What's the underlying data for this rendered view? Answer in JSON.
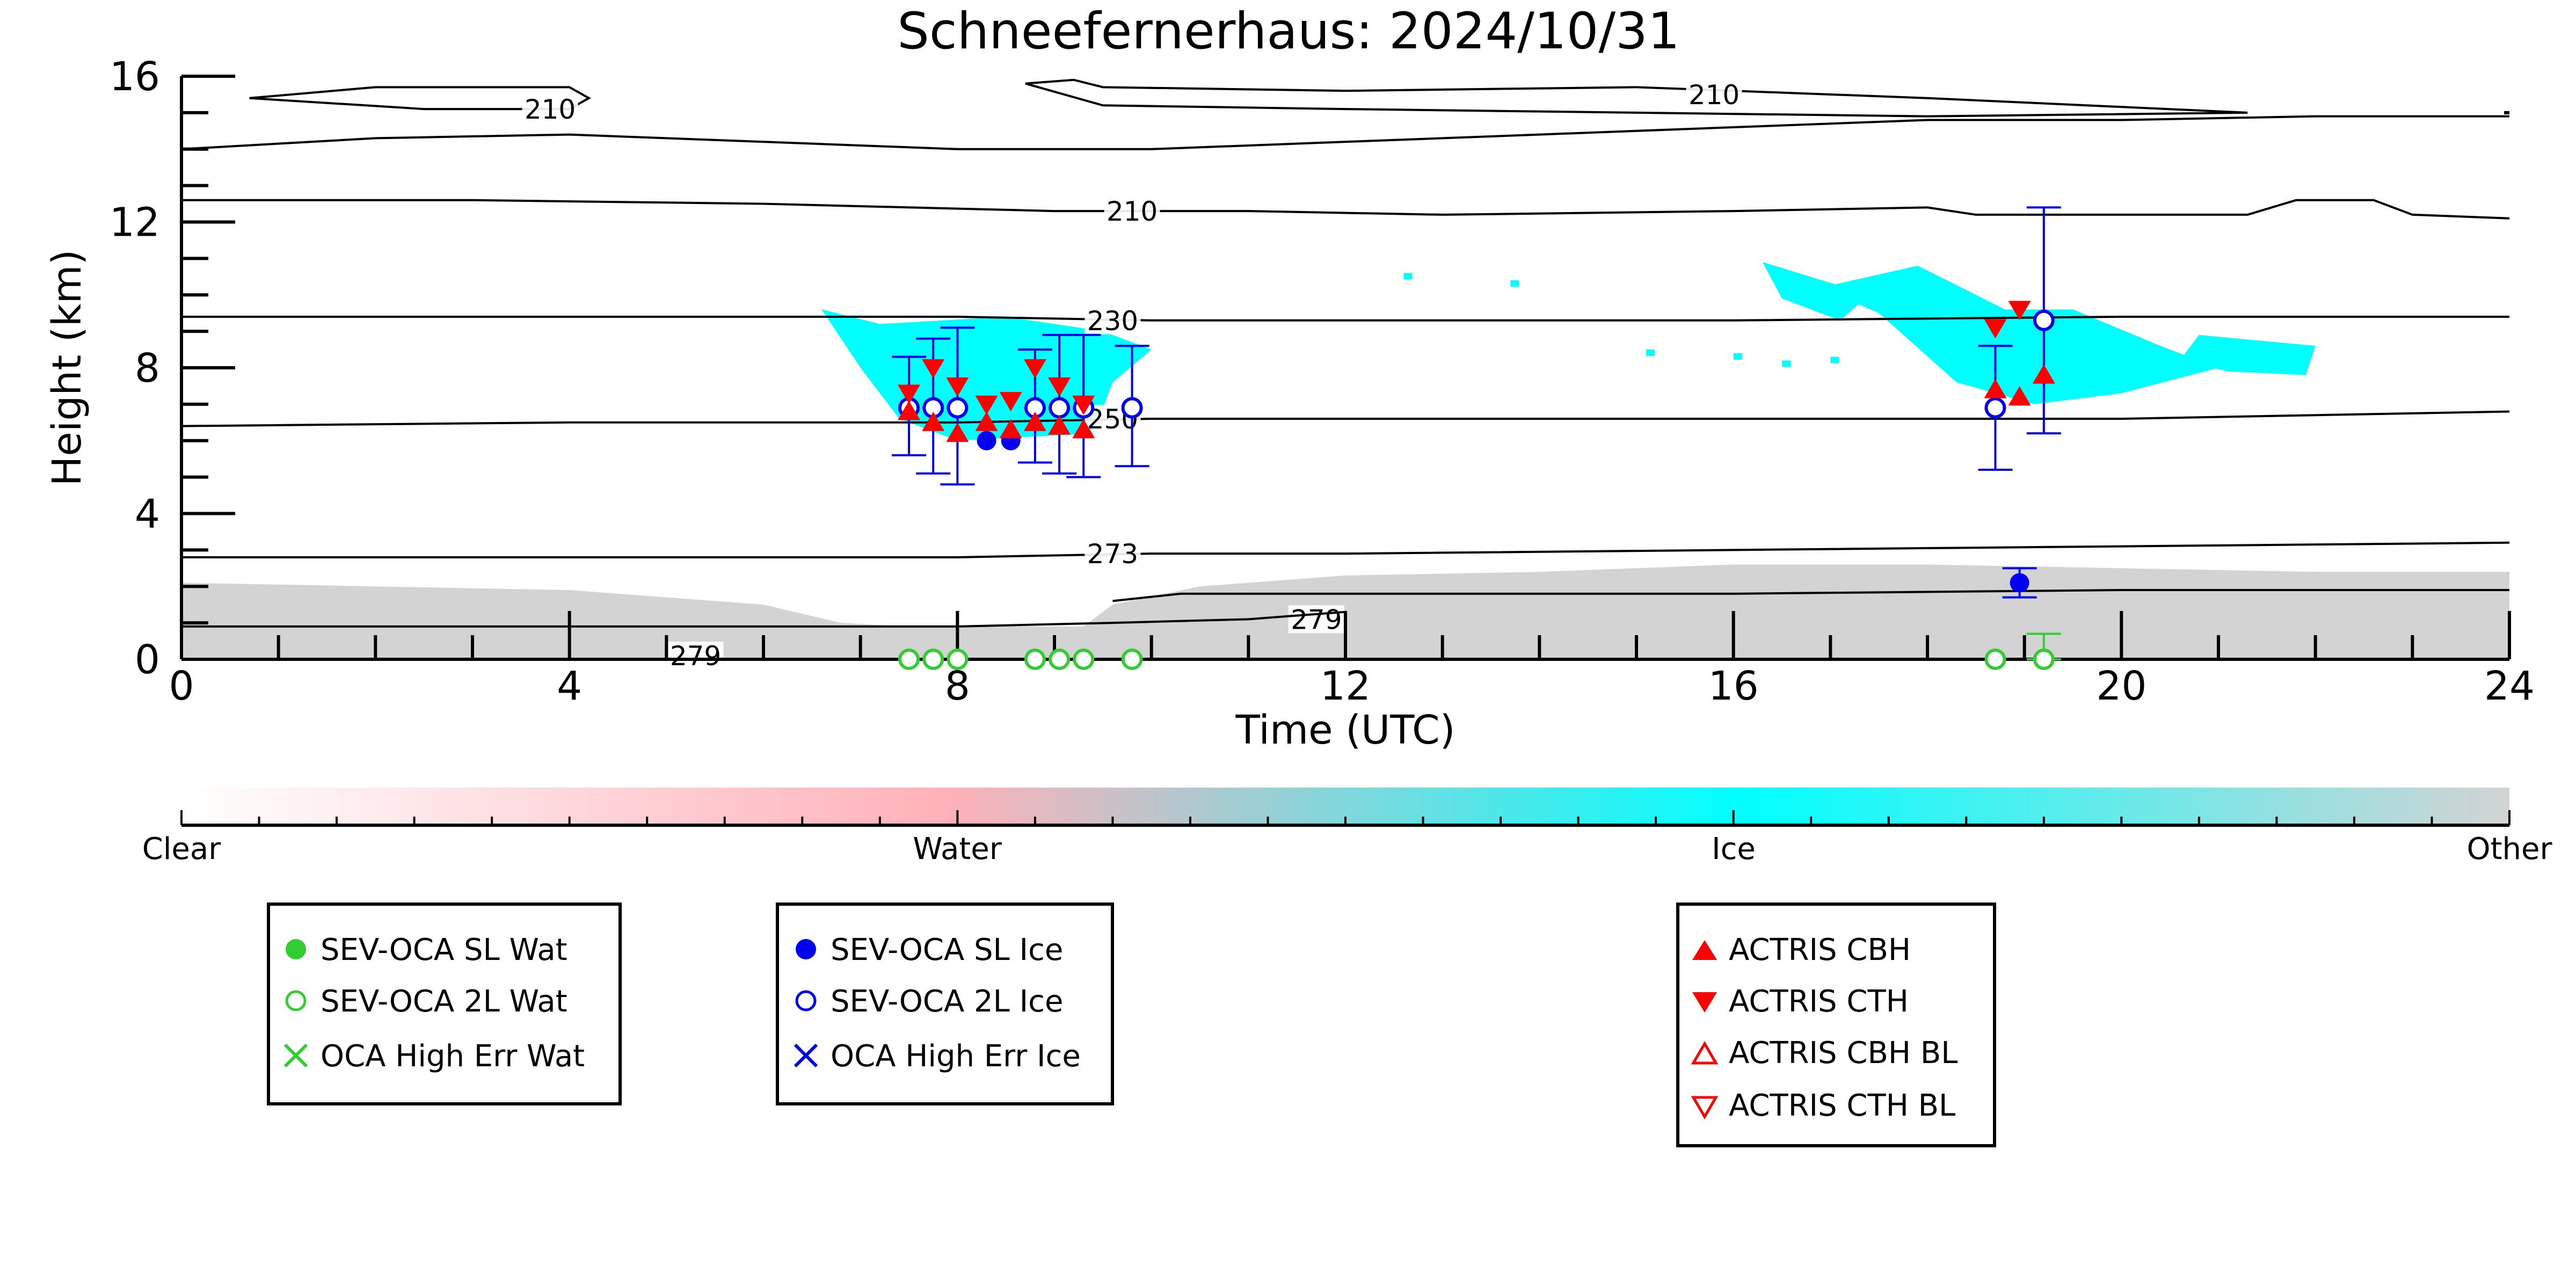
{
  "chart_data": {
    "type": "scatter",
    "title": "Schneefernerhaus: 2024/10/31",
    "xlabel": "Time (UTC)",
    "ylabel": "Height (km)",
    "xlim": [
      0,
      24
    ],
    "ylim": [
      0,
      16
    ],
    "x_ticks": [
      "0",
      "4",
      "8",
      "12",
      "16",
      "20",
      "24"
    ],
    "y_ticks": [
      "0",
      "4",
      "8",
      "12",
      "16"
    ],
    "background_field": "cloud phase mask (Water / Ice / Other)",
    "contours": [
      {
        "label": "210",
        "points": [
          [
            0.7,
            15.4
          ],
          [
            2,
            15.7
          ],
          [
            4,
            15.7
          ],
          [
            4.2,
            15.4
          ],
          [
            4,
            15.1
          ],
          [
            2.5,
            15.1
          ],
          [
            0.7,
            15.4
          ]
        ],
        "label_at": [
          3.8,
          15.1
        ]
      },
      {
        "label": "210",
        "points": [
          [
            0,
            14.0
          ],
          [
            2,
            14.3
          ],
          [
            4,
            14.4
          ],
          [
            6,
            14.2
          ],
          [
            8,
            14.0
          ],
          [
            10,
            14.0
          ],
          [
            12,
            14.2
          ],
          [
            14,
            14.4
          ],
          [
            16,
            14.6
          ],
          [
            18,
            14.8
          ],
          [
            20,
            14.8
          ],
          [
            22,
            14.9
          ],
          [
            24,
            14.9
          ]
        ],
        "label_at": null
      },
      {
        "label": "210",
        "points": [
          [
            8.7,
            15.8
          ],
          [
            9.2,
            15.9
          ],
          [
            9.5,
            15.7
          ],
          [
            12,
            15.6
          ],
          [
            15,
            15.7
          ],
          [
            18,
            15.4
          ],
          [
            21.3,
            15.0
          ],
          [
            18,
            14.9
          ],
          [
            15,
            15.0
          ],
          [
            12,
            15.1
          ],
          [
            9.5,
            15.2
          ],
          [
            8.7,
            15.8
          ]
        ],
        "label_at": [
          15.8,
          15.5
        ]
      },
      {
        "label": "210",
        "points": [
          [
            0,
            12.6
          ],
          [
            3,
            12.6
          ],
          [
            6,
            12.5
          ],
          [
            9,
            12.3
          ],
          [
            11,
            12.3
          ],
          [
            13,
            12.2
          ],
          [
            16,
            12.3
          ],
          [
            18,
            12.4
          ],
          [
            18.5,
            12.2
          ],
          [
            20,
            12.2
          ],
          [
            21.3,
            12.2
          ],
          [
            21.8,
            12.6
          ],
          [
            22.6,
            12.6
          ],
          [
            23,
            12.2
          ],
          [
            24,
            12.1
          ]
        ],
        "label_at": [
          9.8,
          12.3
        ]
      },
      {
        "label": "230",
        "points": [
          [
            0,
            9.4
          ],
          [
            4,
            9.4
          ],
          [
            8,
            9.4
          ],
          [
            10,
            9.3
          ],
          [
            12,
            9.3
          ],
          [
            16,
            9.3
          ],
          [
            20,
            9.4
          ],
          [
            24,
            9.4
          ]
        ],
        "label_at": [
          9.6,
          9.3
        ]
      },
      {
        "label": "250",
        "points": [
          [
            0,
            6.4
          ],
          [
            4,
            6.5
          ],
          [
            8,
            6.5
          ],
          [
            10,
            6.6
          ],
          [
            12,
            6.6
          ],
          [
            16,
            6.6
          ],
          [
            20,
            6.6
          ],
          [
            22,
            6.7
          ],
          [
            24,
            6.8
          ]
        ],
        "label_at": [
          9.6,
          6.6
        ]
      },
      {
        "label": "273",
        "points": [
          [
            0,
            2.8
          ],
          [
            4,
            2.8
          ],
          [
            8,
            2.8
          ],
          [
            10,
            2.9
          ],
          [
            12,
            2.9
          ],
          [
            16,
            3.0
          ],
          [
            20,
            3.1
          ],
          [
            24,
            3.2
          ]
        ],
        "label_at": [
          9.6,
          2.9
        ]
      },
      {
        "label": "279",
        "points": [
          [
            9.6,
            1.6
          ],
          [
            10.3,
            1.8
          ],
          [
            12,
            1.8
          ],
          [
            16,
            1.8
          ],
          [
            20,
            1.9
          ],
          [
            24,
            1.9
          ]
        ],
        "label_at": [
          11.7,
          1.1
        ]
      },
      {
        "label": "279",
        "points": [
          [
            0,
            0.9
          ],
          [
            4,
            0.9
          ],
          [
            8,
            0.9
          ],
          [
            9.6,
            1.0
          ],
          [
            11,
            1.1
          ],
          [
            12,
            1.3
          ]
        ],
        "label_at": null
      },
      {
        "label": "279",
        "points": [],
        "label_at": [
          5.3,
          0.1
        ]
      }
    ],
    "series": [
      {
        "name": "SEV-OCA SL Wat",
        "color": "#33cc33",
        "marker": "filled-circle",
        "points": []
      },
      {
        "name": "SEV-OCA 2L Wat",
        "color": "#33cc33",
        "marker": "open-circle",
        "points": [
          [
            7.5,
            0.0
          ],
          [
            7.75,
            0.0
          ],
          [
            8.0,
            0.0
          ],
          [
            8.8,
            0.0
          ],
          [
            9.05,
            0.0
          ],
          [
            9.3,
            0.0
          ],
          [
            9.8,
            0.0
          ],
          [
            18.7,
            0.0
          ],
          [
            19.2,
            0.0
          ]
        ],
        "errors": [
          [
            19.2,
            0.0,
            0.7
          ]
        ]
      },
      {
        "name": "OCA High Err Wat",
        "color": "#33cc33",
        "marker": "x",
        "points": []
      },
      {
        "name": "SEV-OCA SL Ice",
        "color": "#0000ee",
        "marker": "filled-circle",
        "points": [
          [
            8.3,
            6.0
          ],
          [
            8.55,
            6.0
          ],
          [
            18.95,
            2.1
          ]
        ],
        "errors": [
          [
            18.95,
            1.7,
            2.5
          ]
        ]
      },
      {
        "name": "SEV-OCA 2L Ice",
        "color": "#0000ee",
        "marker": "open-circle",
        "points": [
          [
            7.5,
            6.9
          ],
          [
            7.75,
            6.9
          ],
          [
            8.0,
            6.9
          ],
          [
            8.8,
            6.9
          ],
          [
            9.05,
            6.9
          ],
          [
            9.3,
            6.9
          ],
          [
            9.8,
            6.9
          ],
          [
            18.7,
            6.9
          ],
          [
            19.2,
            9.3
          ]
        ],
        "errors": [
          [
            7.5,
            5.6,
            8.3
          ],
          [
            7.75,
            5.1,
            8.8
          ],
          [
            8.0,
            4.8,
            9.1
          ],
          [
            8.8,
            5.4,
            8.5
          ],
          [
            9.05,
            5.1,
            8.9
          ],
          [
            9.3,
            5.0,
            8.9
          ],
          [
            9.8,
            5.3,
            8.6
          ],
          [
            18.7,
            5.2,
            8.6
          ],
          [
            19.2,
            6.2,
            12.4
          ]
        ]
      },
      {
        "name": "OCA High Err Ice",
        "color": "#0000ee",
        "marker": "x",
        "points": []
      },
      {
        "name": "ACTRIS CBH",
        "color": "#ff0000",
        "marker": "triangle-up",
        "points": [
          [
            7.5,
            6.8
          ],
          [
            7.75,
            6.5
          ],
          [
            8.0,
            6.2
          ],
          [
            8.3,
            6.5
          ],
          [
            8.55,
            6.3
          ],
          [
            8.8,
            6.5
          ],
          [
            9.05,
            6.4
          ],
          [
            9.3,
            6.3
          ],
          [
            18.7,
            7.4
          ],
          [
            18.95,
            7.2
          ],
          [
            19.2,
            7.8
          ]
        ]
      },
      {
        "name": "ACTRIS CTH",
        "color": "#ff0000",
        "marker": "triangle-down",
        "points": [
          [
            7.5,
            7.3
          ],
          [
            7.75,
            8.0
          ],
          [
            8.0,
            7.5
          ],
          [
            8.3,
            7.0
          ],
          [
            8.55,
            7.1
          ],
          [
            8.8,
            8.0
          ],
          [
            9.05,
            7.5
          ],
          [
            9.3,
            7.0
          ],
          [
            18.7,
            9.1
          ],
          [
            18.95,
            9.6
          ]
        ]
      },
      {
        "name": "ACTRIS CBH BL",
        "color": "#ff0000",
        "marker": "open-triangle-up",
        "points": []
      },
      {
        "name": "ACTRIS CTH BL",
        "color": "#ff0000",
        "marker": "open-triangle-down",
        "points": []
      }
    ],
    "colorbar": {
      "labels": [
        "Clear",
        "Water",
        "Ice",
        "Other"
      ],
      "colors": [
        "#ffffff",
        "#ffb0b8",
        "#00ffff",
        "#d3d3d3"
      ]
    },
    "mask_colors": {
      "ice": "#00ffff",
      "other": "#d3d3d3"
    }
  }
}
